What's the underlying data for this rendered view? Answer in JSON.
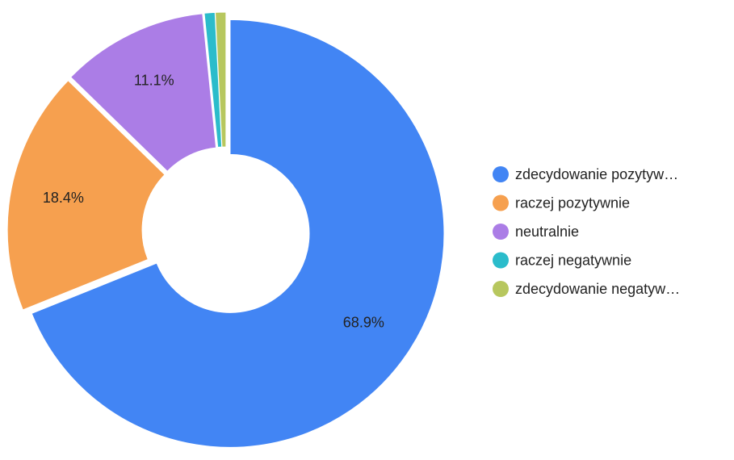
{
  "chart_data": {
    "type": "donut",
    "categories": [
      "zdecydowanie pozytyw…",
      "raczej pozytywnie",
      "neutralnie",
      "raczej negatywnie",
      "zdecydowanie negatyw…"
    ],
    "values": [
      68.9,
      18.4,
      11.1,
      0.8,
      0.8
    ],
    "value_labels": [
      "68.9%",
      "18.4%",
      "11.1%",
      null,
      null
    ],
    "colors": [
      "#4285f4",
      "#f6a04f",
      "#ab7de6",
      "#2bbccb",
      "#b7c75e"
    ],
    "legend": "right"
  }
}
